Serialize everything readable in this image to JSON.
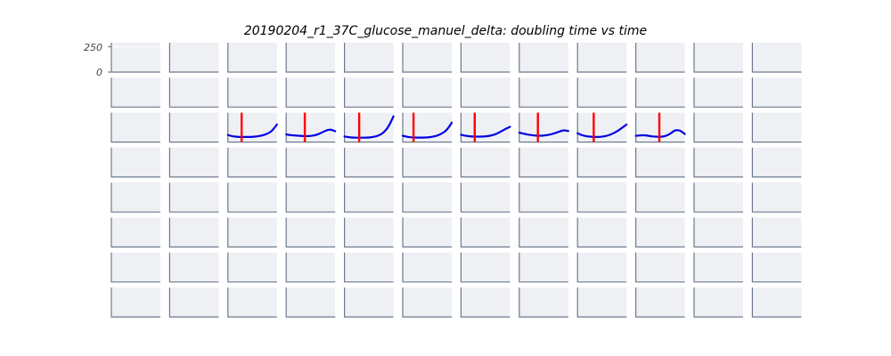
{
  "chart_data": {
    "type": "line",
    "title": "20190204_r1_37C_glucose_manuel_delta: doubling time vs time",
    "rows": 8,
    "cols": 12,
    "y_ticks": [
      "250",
      "0"
    ],
    "colors": {
      "curve": "#0000e6",
      "marker": "#ff0000",
      "panel": "#eff0f4",
      "axis": "#6c7a8c"
    },
    "panels": [
      {
        "row": 2,
        "col": 2,
        "y": [
          60,
          48,
          44,
          43,
          43,
          44,
          48,
          56,
          70,
          94,
          150
        ],
        "marker_at": 0.28
      },
      {
        "row": 2,
        "col": 3,
        "y": [
          65,
          58,
          55,
          52,
          50,
          52,
          58,
          75,
          96,
          108,
          92
        ],
        "marker_at": 0.38
      },
      {
        "row": 2,
        "col": 4,
        "y": [
          48,
          40,
          37,
          37,
          37,
          39,
          44,
          55,
          80,
          130,
          220
        ],
        "marker_at": 0.3
      },
      {
        "row": 2,
        "col": 5,
        "y": [
          54,
          43,
          39,
          38,
          38,
          39,
          44,
          54,
          73,
          102,
          165
        ],
        "marker_at": 0.22
      },
      {
        "row": 2,
        "col": 6,
        "y": [
          62,
          52,
          48,
          46,
          46,
          48,
          54,
          66,
          86,
          110,
          130
        ],
        "marker_at": 0.28
      },
      {
        "row": 2,
        "col": 7,
        "y": [
          80,
          70,
          62,
          56,
          53,
          55,
          62,
          72,
          86,
          102,
          94
        ],
        "marker_at": 0.38
      },
      {
        "row": 2,
        "col": 8,
        "y": [
          75,
          56,
          48,
          44,
          43,
          45,
          53,
          68,
          90,
          118,
          150
        ],
        "marker_at": 0.33
      },
      {
        "row": 2,
        "col": 9,
        "y": [
          52,
          58,
          57,
          50,
          46,
          44,
          50,
          70,
          102,
          100,
          68
        ],
        "marker_at": 0.48
      }
    ]
  }
}
